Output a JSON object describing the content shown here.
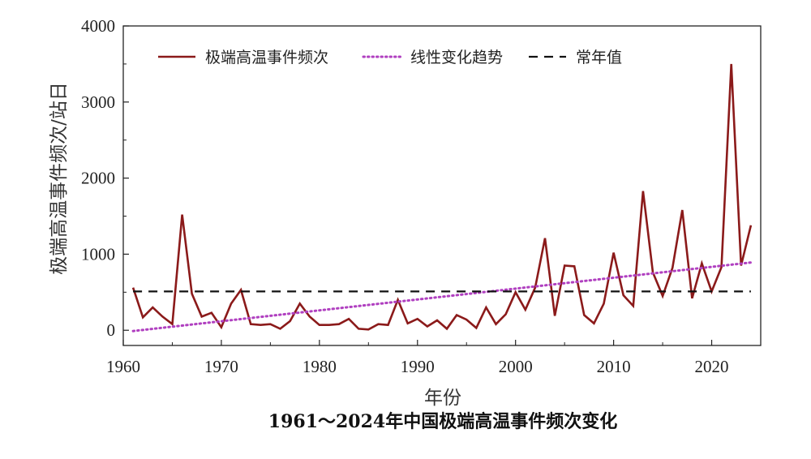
{
  "chart_data": {
    "type": "line",
    "caption": "1961～2024年中国极端高温事件频次变化",
    "xlabel": "年份",
    "ylabel": "极端高温事件频次/站日",
    "xlim": [
      1960,
      2025
    ],
    "ylim": [
      -200,
      4000
    ],
    "xticks": [
      1960,
      1970,
      1980,
      1990,
      2000,
      2010,
      2020
    ],
    "yticks": [
      0,
      1000,
      2000,
      3000,
      4000
    ],
    "grid": false,
    "legend_position": "top",
    "series": [
      {
        "name": "极端高温事件频次",
        "style": "solid",
        "color": "#8b1a1a",
        "x": [
          1961,
          1962,
          1963,
          1964,
          1965,
          1966,
          1967,
          1968,
          1969,
          1970,
          1971,
          1972,
          1973,
          1974,
          1975,
          1976,
          1977,
          1978,
          1979,
          1980,
          1981,
          1982,
          1983,
          1984,
          1985,
          1986,
          1987,
          1988,
          1989,
          1990,
          1991,
          1992,
          1993,
          1994,
          1995,
          1996,
          1997,
          1998,
          1999,
          2000,
          2001,
          2002,
          2003,
          2004,
          2005,
          2006,
          2007,
          2008,
          2009,
          2010,
          2011,
          2012,
          2013,
          2014,
          2015,
          2016,
          2017,
          2018,
          2019,
          2020,
          2021,
          2022,
          2023,
          2024
        ],
        "values": [
          560,
          170,
          300,
          180,
          80,
          1520,
          480,
          180,
          230,
          40,
          350,
          530,
          80,
          70,
          80,
          20,
          120,
          350,
          180,
          70,
          70,
          80,
          150,
          20,
          10,
          80,
          70,
          400,
          90,
          150,
          50,
          130,
          20,
          200,
          140,
          30,
          300,
          80,
          210,
          500,
          270,
          560,
          1210,
          190,
          850,
          840,
          200,
          90,
          350,
          1020,
          460,
          320,
          1830,
          760,
          450,
          820,
          1580,
          420,
          880,
          510,
          830,
          3500,
          850,
          1380
        ]
      },
      {
        "name": "线性变化趋势",
        "style": "dotted",
        "color": "#b040c0",
        "x": [
          1961,
          2024
        ],
        "values": [
          -10,
          890
        ]
      },
      {
        "name": "常年值",
        "style": "dashed",
        "color": "#111111",
        "x": [
          1961,
          2024
        ],
        "values": [
          510,
          510
        ]
      }
    ]
  }
}
